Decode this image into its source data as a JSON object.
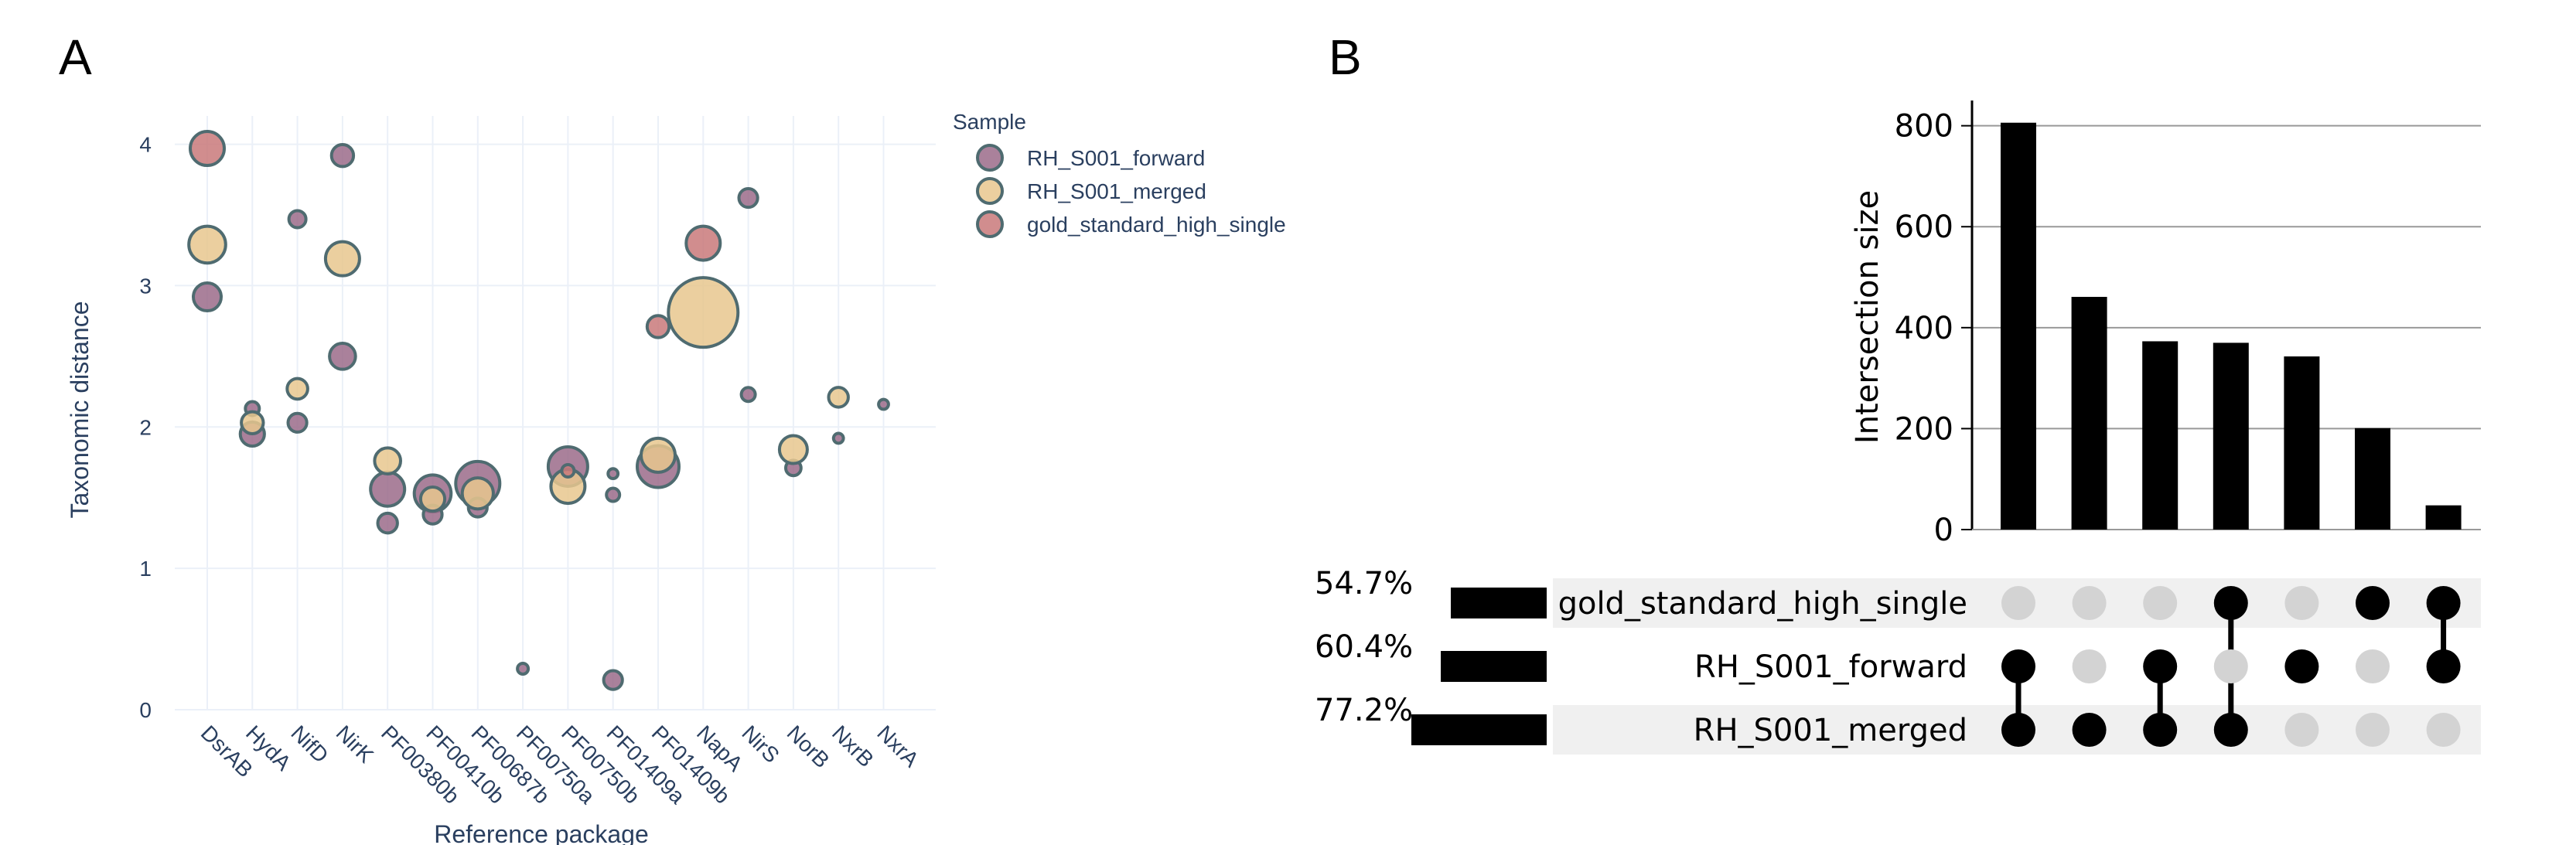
{
  "panels": {
    "a": "A",
    "b": "B"
  },
  "chart_data": [
    {
      "type": "scatter",
      "xlabel": "Reference package",
      "ylabel": "Taxonomic distance",
      "ylim": [
        0,
        4.2
      ],
      "yticks": [
        0,
        1,
        2,
        3,
        4
      ],
      "categories": [
        "DsrAB",
        "HydA",
        "NifD",
        "NirK",
        "PF00380b",
        "PF00410b",
        "PF00687b",
        "PF00750a",
        "PF00750b",
        "PF01409a",
        "PF01409b",
        "NapA",
        "NirS",
        "NorB",
        "NxrB",
        "NxrA"
      ],
      "grid": true,
      "legend": {
        "title": "Sample",
        "placement": "right"
      },
      "series": [
        {
          "name": "RH_S001_forward",
          "color": "#9b6b8a",
          "points": [
            {
              "x": "DsrAB",
              "y": 2.92,
              "size": 4
            },
            {
              "x": "HydA",
              "y": 1.95,
              "size": 3
            },
            {
              "x": "HydA",
              "y": 2.13,
              "size": 1
            },
            {
              "x": "NifD",
              "y": 3.47,
              "size": 1.5
            },
            {
              "x": "NifD",
              "y": 2.03,
              "size": 1.8
            },
            {
              "x": "NirK",
              "y": 2.5,
              "size": 3.5
            },
            {
              "x": "NirK",
              "y": 3.92,
              "size": 2.5
            },
            {
              "x": "PF00380b",
              "y": 1.56,
              "size": 6
            },
            {
              "x": "PF00380b",
              "y": 1.32,
              "size": 2
            },
            {
              "x": "PF00410b",
              "y": 1.53,
              "size": 7
            },
            {
              "x": "PF00410b",
              "y": 1.38,
              "size": 1.8
            },
            {
              "x": "PF00687b",
              "y": 1.6,
              "size": 10
            },
            {
              "x": "PF00687b",
              "y": 1.43,
              "size": 1.8
            },
            {
              "x": "PF00750a",
              "y": 0.29,
              "size": 0.6
            },
            {
              "x": "PF00750b",
              "y": 1.72,
              "size": 8
            },
            {
              "x": "PF01409a",
              "y": 1.67,
              "size": 0.5
            },
            {
              "x": "PF01409a",
              "y": 1.52,
              "size": 0.9
            },
            {
              "x": "PF01409a",
              "y": 0.21,
              "size": 1.8
            },
            {
              "x": "PF01409b",
              "y": 1.72,
              "size": 9
            },
            {
              "x": "NirS",
              "y": 3.62,
              "size": 1.8
            },
            {
              "x": "NirS",
              "y": 2.23,
              "size": 1
            },
            {
              "x": "NorB",
              "y": 1.71,
              "size": 1.2
            },
            {
              "x": "NxrB",
              "y": 1.92,
              "size": 0.5
            },
            {
              "x": "NxrA",
              "y": 2.16,
              "size": 0.5
            }
          ]
        },
        {
          "name": "RH_S001_merged",
          "color": "#e8c78e",
          "points": [
            {
              "x": "DsrAB",
              "y": 3.29,
              "size": 7
            },
            {
              "x": "HydA",
              "y": 2.03,
              "size": 2.5
            },
            {
              "x": "NifD",
              "y": 2.27,
              "size": 2.2
            },
            {
              "x": "NirK",
              "y": 3.19,
              "size": 6
            },
            {
              "x": "PF00380b",
              "y": 1.76,
              "size": 3.5
            },
            {
              "x": "PF00410b",
              "y": 1.49,
              "size": 3
            },
            {
              "x": "PF00687b",
              "y": 1.53,
              "size": 5
            },
            {
              "x": "PF00750b",
              "y": 1.58,
              "size": 6
            },
            {
              "x": "PF01409b",
              "y": 1.8,
              "size": 6
            },
            {
              "x": "NapA",
              "y": 2.81,
              "size": 25
            },
            {
              "x": "NorB",
              "y": 1.84,
              "size": 4
            },
            {
              "x": "NxrB",
              "y": 2.21,
              "size": 2
            }
          ]
        },
        {
          "name": "gold_standard_high_single",
          "color": "#c9797a",
          "points": [
            {
              "x": "DsrAB",
              "y": 3.97,
              "size": 6
            },
            {
              "x": "PF00750b",
              "y": 1.69,
              "size": 0.8
            },
            {
              "x": "PF01409b",
              "y": 2.71,
              "size": 2.5
            },
            {
              "x": "NapA",
              "y": 3.3,
              "size": 6
            }
          ]
        }
      ]
    },
    {
      "type": "bar",
      "subtype": "upset",
      "ylabel": "Intersection size",
      "ylim": [
        0,
        850
      ],
      "yticks": [
        0,
        200,
        400,
        600,
        800
      ],
      "values": [
        806,
        461,
        373,
        370,
        343,
        201,
        48
      ],
      "sets": [
        {
          "name": "gold_standard_high_single",
          "percent_label": "54.7%",
          "percent": 54.7
        },
        {
          "name": "RH_S001_forward",
          "percent_label": "60.4%",
          "percent": 60.4
        },
        {
          "name": "RH_S001_merged",
          "percent_label": "77.2%",
          "percent": 77.2
        }
      ],
      "membership": [
        [
          false,
          true,
          true
        ],
        [
          false,
          false,
          true
        ],
        [
          false,
          true,
          true
        ],
        [
          true,
          false,
          true
        ],
        [
          false,
          true,
          false
        ],
        [
          true,
          false,
          false
        ],
        [
          true,
          true,
          false
        ]
      ],
      "colors": {
        "bar": "#000000",
        "dot_on": "#000000",
        "dot_off": "#d3d3d3",
        "stripe": "#f0f0f0"
      }
    }
  ]
}
